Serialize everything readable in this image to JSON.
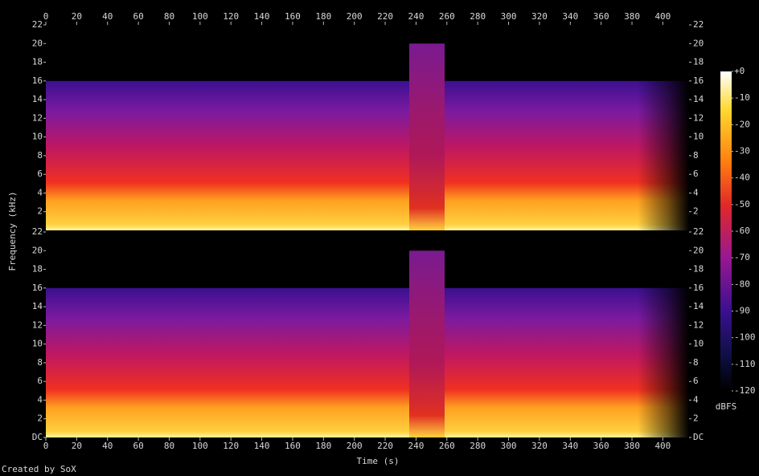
{
  "chart_data": {
    "type": "spectrogram",
    "xlabel": "Time (s)",
    "ylabel": "Frequency (kHz)",
    "xlim": [
      0,
      417
    ],
    "xticks": [
      0,
      20,
      40,
      60,
      80,
      100,
      120,
      140,
      160,
      180,
      200,
      220,
      240,
      260,
      280,
      300,
      320,
      340,
      360,
      380,
      400
    ],
    "panels": [
      {
        "ylim": [
          0,
          22
        ],
        "yticks": [
          2,
          4,
          6,
          8,
          10,
          12,
          14,
          16,
          18,
          20,
          22
        ]
      },
      {
        "ylim": [
          0,
          22
        ],
        "yticks": [
          {
            "value": 0,
            "label": "DC"
          },
          2,
          4,
          6,
          8,
          10,
          12,
          14,
          16,
          18,
          20,
          22
        ]
      }
    ],
    "colorbar": {
      "label": "dBFS",
      "lim": [
        -120,
        0
      ],
      "ticks": [
        {
          "value": 0,
          "label": "+0"
        },
        -10,
        -20,
        -30,
        -40,
        -50,
        -60,
        -70,
        -80,
        -90,
        -100,
        -110,
        -120
      ]
    },
    "credit": "Created by SoX"
  }
}
